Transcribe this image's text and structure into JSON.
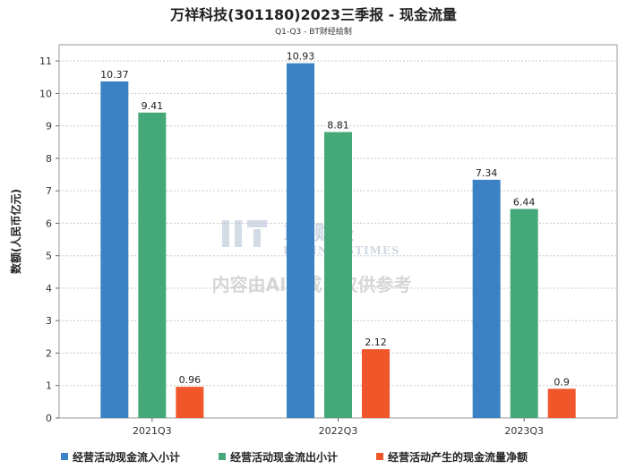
{
  "header": {
    "title": "万祥科技(301180)2023三季报 - 现金流量",
    "subtitle": "Q1-Q3 - BT财经绘制"
  },
  "watermark": {
    "brand": "BT财经",
    "brand_en": "BUSINESSTIMES",
    "notice": "内容由AI生成，仅供参考"
  },
  "colors": {
    "series": [
      "#3a82c4",
      "#45a878",
      "#f0562a"
    ],
    "grid": "#c8c8c8",
    "plot_border": "#999999"
  },
  "chart_data": {
    "type": "bar",
    "categories": [
      "2021Q3",
      "2022Q3",
      "2023Q3"
    ],
    "series": [
      {
        "name": "经营活动现金流入小计",
        "values": [
          10.37,
          10.93,
          7.34
        ]
      },
      {
        "name": "经营活动现金流出小计",
        "values": [
          9.41,
          8.81,
          6.44
        ]
      },
      {
        "name": "经营活动产生的现金流量净额",
        "values": [
          0.96,
          2.12,
          0.9
        ]
      }
    ],
    "ylabel": "数额(人民币亿元)",
    "ylim": [
      0,
      11.5
    ],
    "yticks": [
      0,
      1,
      2,
      3,
      4,
      5,
      6,
      7,
      8,
      9,
      10,
      11
    ],
    "grid": true,
    "legend_position": "bottom"
  }
}
